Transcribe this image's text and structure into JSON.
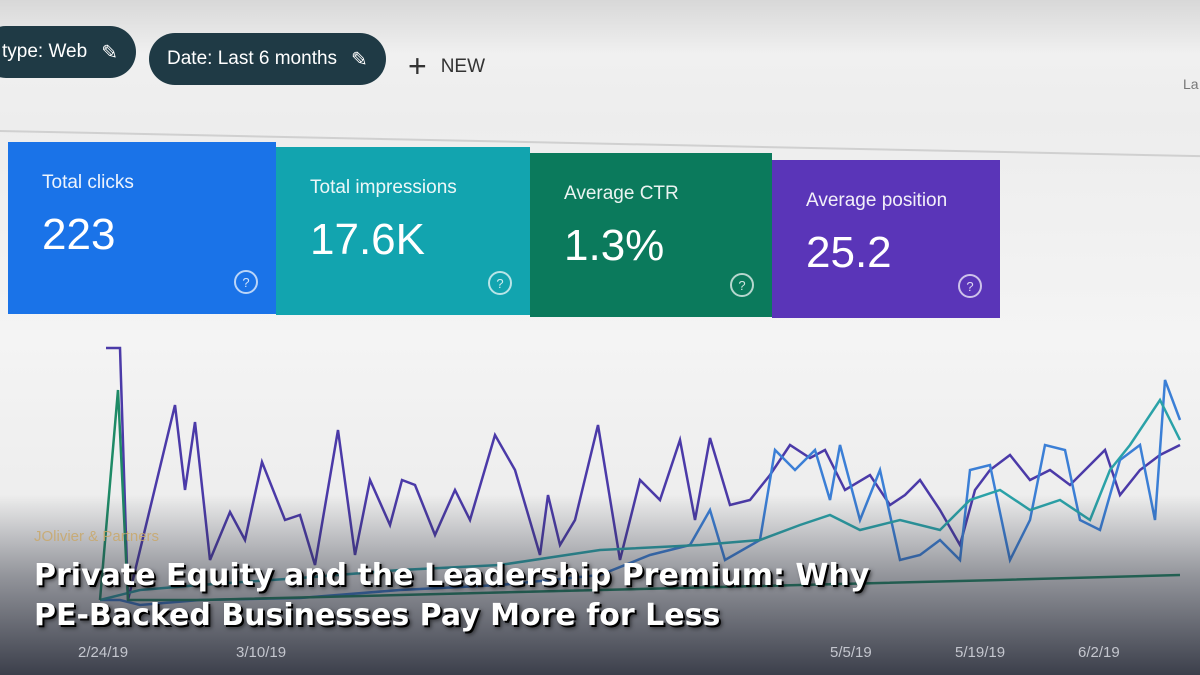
{
  "filters": {
    "chip1": "type: Web",
    "chip2": "Date: Last 6 months",
    "new_label": "NEW",
    "edge_text": "La"
  },
  "metrics": [
    {
      "label": "Total clicks",
      "value": "223",
      "color": "#1a73e8"
    },
    {
      "label": "Total impressions",
      "value": "17.6K",
      "color": "#12a4af"
    },
    {
      "label": "Average CTR",
      "value": "1.3%",
      "color": "#0b7a5c"
    },
    {
      "label": "Average position",
      "value": "25.2",
      "color": "#5a35b8"
    }
  ],
  "x_ticks": [
    "2/24/19",
    "3/10/19",
    "5/5/19",
    "5/19/19",
    "6/2/19"
  ],
  "article": {
    "brand": "JOlivier & Partners",
    "title_line1": "Private Equity and the Leadership Premium: Why",
    "title_line2": "PE-Backed Businesses Pay More for Less"
  },
  "icons": {
    "edit": "pencil-icon",
    "add": "plus-icon",
    "help": "help-circle-icon"
  }
}
